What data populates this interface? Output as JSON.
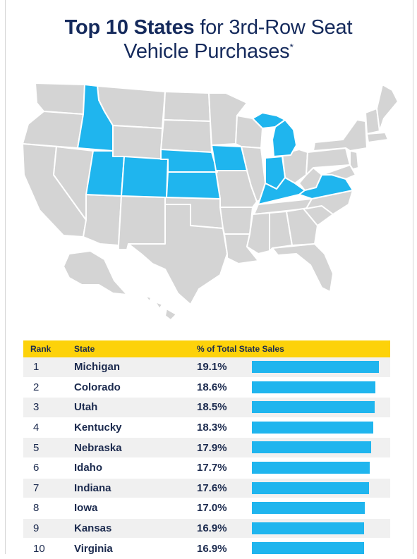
{
  "title": {
    "bold_part": "Top 10 States",
    "rest_part": "for 3rd-Row Seat",
    "line2": "Vehicle Purchases",
    "footnote_mark": "*"
  },
  "colors": {
    "highlight": "#1fb5ee",
    "state_gray": "#d4d4d4",
    "header_yellow": "#fdd20a",
    "title_navy": "#152a5c"
  },
  "map": {
    "highlighted_states": [
      "Idaho",
      "Utah",
      "Colorado",
      "Nebraska",
      "Kansas",
      "Iowa",
      "Michigan",
      "Indiana",
      "Kentucky",
      "Virginia"
    ]
  },
  "chart_data": {
    "type": "table",
    "columns": [
      "Rank",
      "State",
      "% of Total State Sales"
    ],
    "rows": [
      {
        "rank": "1",
        "state": "Michigan",
        "pct_label": "19.1%",
        "value": 19.1
      },
      {
        "rank": "2",
        "state": "Colorado",
        "pct_label": "18.6%",
        "value": 18.6
      },
      {
        "rank": "3",
        "state": "Utah",
        "pct_label": "18.5%",
        "value": 18.5
      },
      {
        "rank": "4",
        "state": "Kentucky",
        "pct_label": "18.3%",
        "value": 18.3
      },
      {
        "rank": "5",
        "state": "Nebraska",
        "pct_label": "17.9%",
        "value": 17.9
      },
      {
        "rank": "6",
        "state": "Idaho",
        "pct_label": "17.7%",
        "value": 17.7
      },
      {
        "rank": "7",
        "state": "Indiana",
        "pct_label": "17.6%",
        "value": 17.6
      },
      {
        "rank": "8",
        "state": "Iowa",
        "pct_label": "17.0%",
        "value": 17.0
      },
      {
        "rank": "9",
        "state": "Kansas",
        "pct_label": "16.9%",
        "value": 16.9
      },
      {
        "rank": "10",
        "state": "Virginia",
        "pct_label": "16.9%",
        "value": 16.9
      }
    ]
  }
}
